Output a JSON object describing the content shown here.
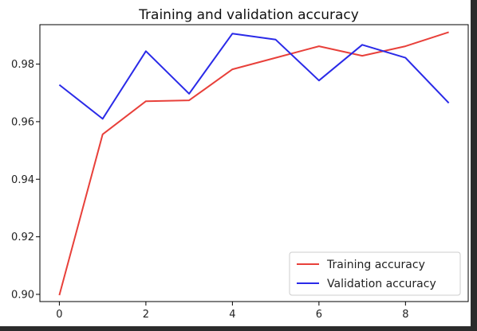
{
  "chart_data": {
    "type": "line",
    "title": "Training and validation accuracy",
    "xlabel": "",
    "ylabel": "",
    "xlim": [
      -0.45,
      9.45
    ],
    "ylim": [
      0.8975,
      0.9937
    ],
    "x_ticks": [
      0,
      2,
      4,
      6,
      8
    ],
    "y_ticks": [
      0.9,
      0.92,
      0.94,
      0.96,
      0.98
    ],
    "x_tick_labels": [
      "0",
      "2",
      "4",
      "6",
      "8"
    ],
    "y_tick_labels": [
      "0.90",
      "0.92",
      "0.94",
      "0.96",
      "0.98"
    ],
    "x": [
      0,
      1,
      2,
      3,
      4,
      5,
      6,
      7,
      8,
      9
    ],
    "series": [
      {
        "name": "Training accuracy",
        "color": "#e8403a",
        "values": [
          0.8997,
          0.9556,
          0.9671,
          0.9674,
          0.9782,
          0.9822,
          0.9862,
          0.9829,
          0.9862,
          0.9911
        ]
      },
      {
        "name": "Validation accuracy",
        "color": "#2a2ae8",
        "values": [
          0.9728,
          0.961,
          0.9845,
          0.9697,
          0.9906,
          0.9885,
          0.9743,
          0.9867,
          0.9822,
          0.9665
        ]
      }
    ],
    "grid": false,
    "legend_position": "lower-right"
  }
}
